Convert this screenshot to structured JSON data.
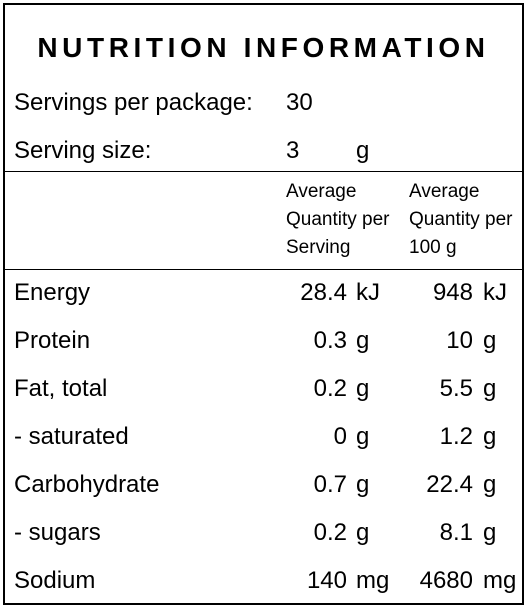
{
  "panel": {
    "title": "NUTRITION INFORMATION",
    "servings_label": "Servings per package:",
    "servings_value": "30",
    "serving_size_label": "Serving size:",
    "serving_size_value": "3",
    "serving_size_unit": "g"
  },
  "columns": {
    "per_serving": "Average\nQuantity per\nServing",
    "per_100g": "Average\nQuantity per\n100 g"
  },
  "rows": [
    {
      "name": "Energy",
      "per_serving": "28.4",
      "per_serving_unit": "kJ",
      "per_100g": "948",
      "per_100g_unit": "kJ"
    },
    {
      "name": "Protein",
      "per_serving": "0.3",
      "per_serving_unit": "g",
      "per_100g": "10",
      "per_100g_unit": "g"
    },
    {
      "name": "Fat, total",
      "per_serving": "0.2",
      "per_serving_unit": "g",
      "per_100g": "5.5",
      "per_100g_unit": "g"
    },
    {
      "name": "- saturated",
      "per_serving": "0",
      "per_serving_unit": "g",
      "per_100g": "1.2",
      "per_100g_unit": "g"
    },
    {
      "name": "Carbohydrate",
      "per_serving": "0.7",
      "per_serving_unit": "g",
      "per_100g": "22.4",
      "per_100g_unit": "g"
    },
    {
      "name": "- sugars",
      "per_serving": "0.2",
      "per_serving_unit": "g",
      "per_100g": "8.1",
      "per_100g_unit": "g"
    },
    {
      "name": "Sodium",
      "per_serving": "140",
      "per_serving_unit": "mg",
      "per_100g": "4680",
      "per_100g_unit": "mg"
    }
  ]
}
